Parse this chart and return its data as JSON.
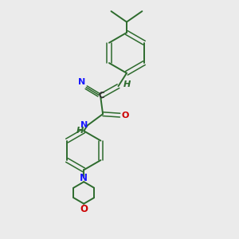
{
  "background_color": "#ebebeb",
  "bond_color": "#2d6b2d",
  "N_color": "#1a1aff",
  "O_color": "#cc0000",
  "H_color": "#2d6b2d",
  "C_color": "#303030",
  "figsize": [
    3.0,
    3.0
  ],
  "dpi": 100,
  "xlim": [
    0,
    10
  ],
  "ylim": [
    0,
    10
  ]
}
